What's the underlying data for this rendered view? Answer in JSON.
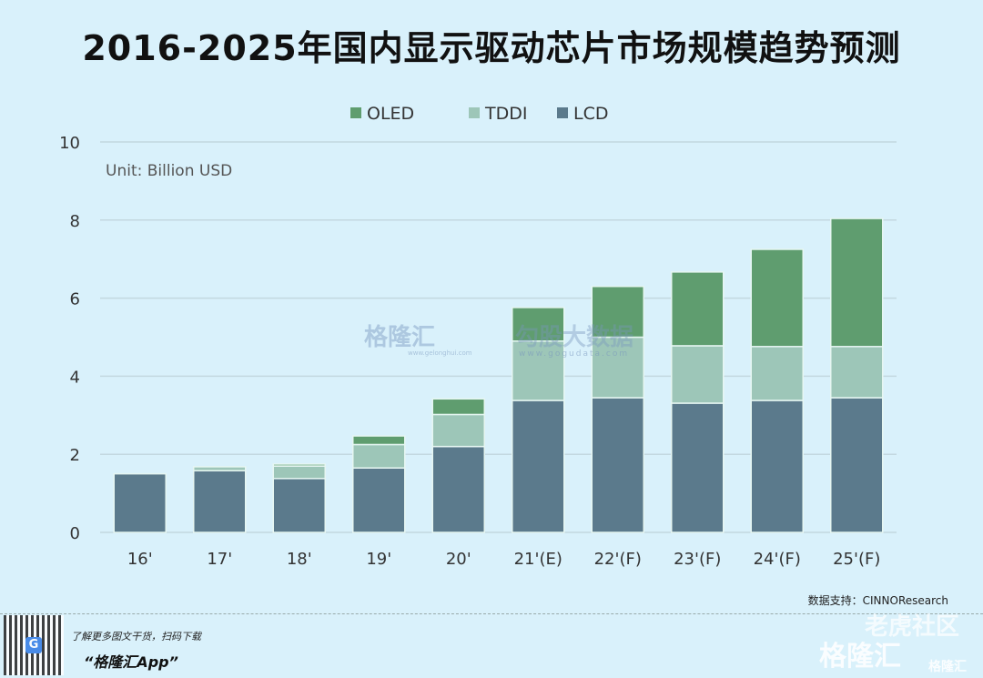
{
  "title": "2016-2025年国内显示驱动芯片市场规模趋势预测",
  "chart_data": {
    "type": "bar",
    "stacked": true,
    "categories": [
      "16'",
      "17'",
      "18'",
      "19'",
      "20'",
      "21'(E)",
      "22'(F)",
      "23'(F)",
      "24'(F)",
      "25'(F)"
    ],
    "series": [
      {
        "name": "LCD",
        "color": "#5b7a8c",
        "values": [
          1.5,
          1.58,
          1.38,
          1.65,
          2.2,
          3.38,
          3.45,
          3.31,
          3.38,
          3.45
        ]
      },
      {
        "name": "TDDI",
        "color": "#9dc6b8",
        "values": [
          0,
          0.1,
          0.32,
          0.6,
          0.82,
          1.52,
          1.55,
          1.47,
          1.38,
          1.31
        ]
      },
      {
        "name": "OLED",
        "color": "#5f9d6f",
        "values": [
          0,
          0,
          0.05,
          0.22,
          0.4,
          0.86,
          1.3,
          1.89,
          2.49,
          3.28
        ]
      }
    ],
    "legend_order": [
      "OLED",
      "TDDI",
      "LCD"
    ],
    "unit_label": "Unit: Billion USD",
    "ylim": [
      0,
      10
    ],
    "yticks": [
      0,
      2,
      4,
      6,
      8,
      10
    ],
    "grid": true,
    "legend_position": "top"
  },
  "source": "数据支持：CINNOResearch",
  "footer": {
    "promo_line": "了解更多图文干货，扫码下载",
    "app_name": "“格隆汇App”",
    "qr_badge": "G"
  },
  "watermarks": {
    "center_logo": "格隆汇",
    "center_logo_url": "www.gelonghui.com",
    "center_brand": "勾股大数据",
    "center_brand_url": "www.gogudata.com",
    "corner_1": "老虎社区",
    "corner_2": "格隆汇",
    "corner_3": "格隆汇"
  }
}
